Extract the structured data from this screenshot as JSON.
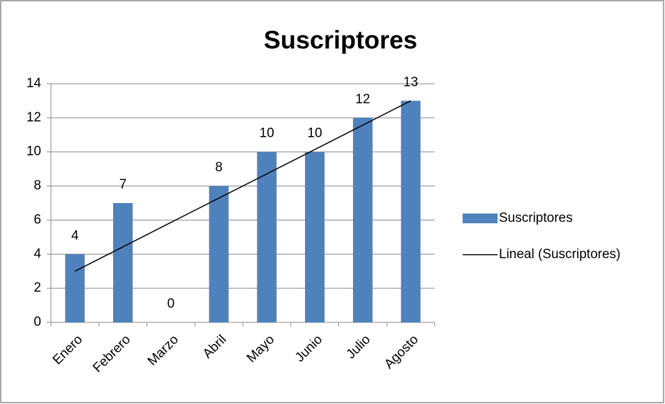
{
  "chart_data": {
    "type": "bar",
    "title": "Suscriptores",
    "categories": [
      "Enero",
      "Febrero",
      "Marzo",
      "Abril",
      "Mayo",
      "Junio",
      "Julio",
      "Agosto"
    ],
    "series": [
      {
        "name": "Suscriptores",
        "color": "#4f81bd",
        "values": [
          4,
          7,
          0,
          8,
          10,
          10,
          12,
          13
        ]
      },
      {
        "name": "Lineal (Suscriptores)",
        "color": "#000000",
        "type": "line",
        "values": [
          3.0,
          4.43,
          5.86,
          7.29,
          8.71,
          10.14,
          11.57,
          13.0
        ]
      }
    ],
    "ylim": [
      0,
      14
    ],
    "yticks": [
      0,
      2,
      4,
      6,
      8,
      10,
      12,
      14
    ],
    "grid": true,
    "legend": "right"
  }
}
